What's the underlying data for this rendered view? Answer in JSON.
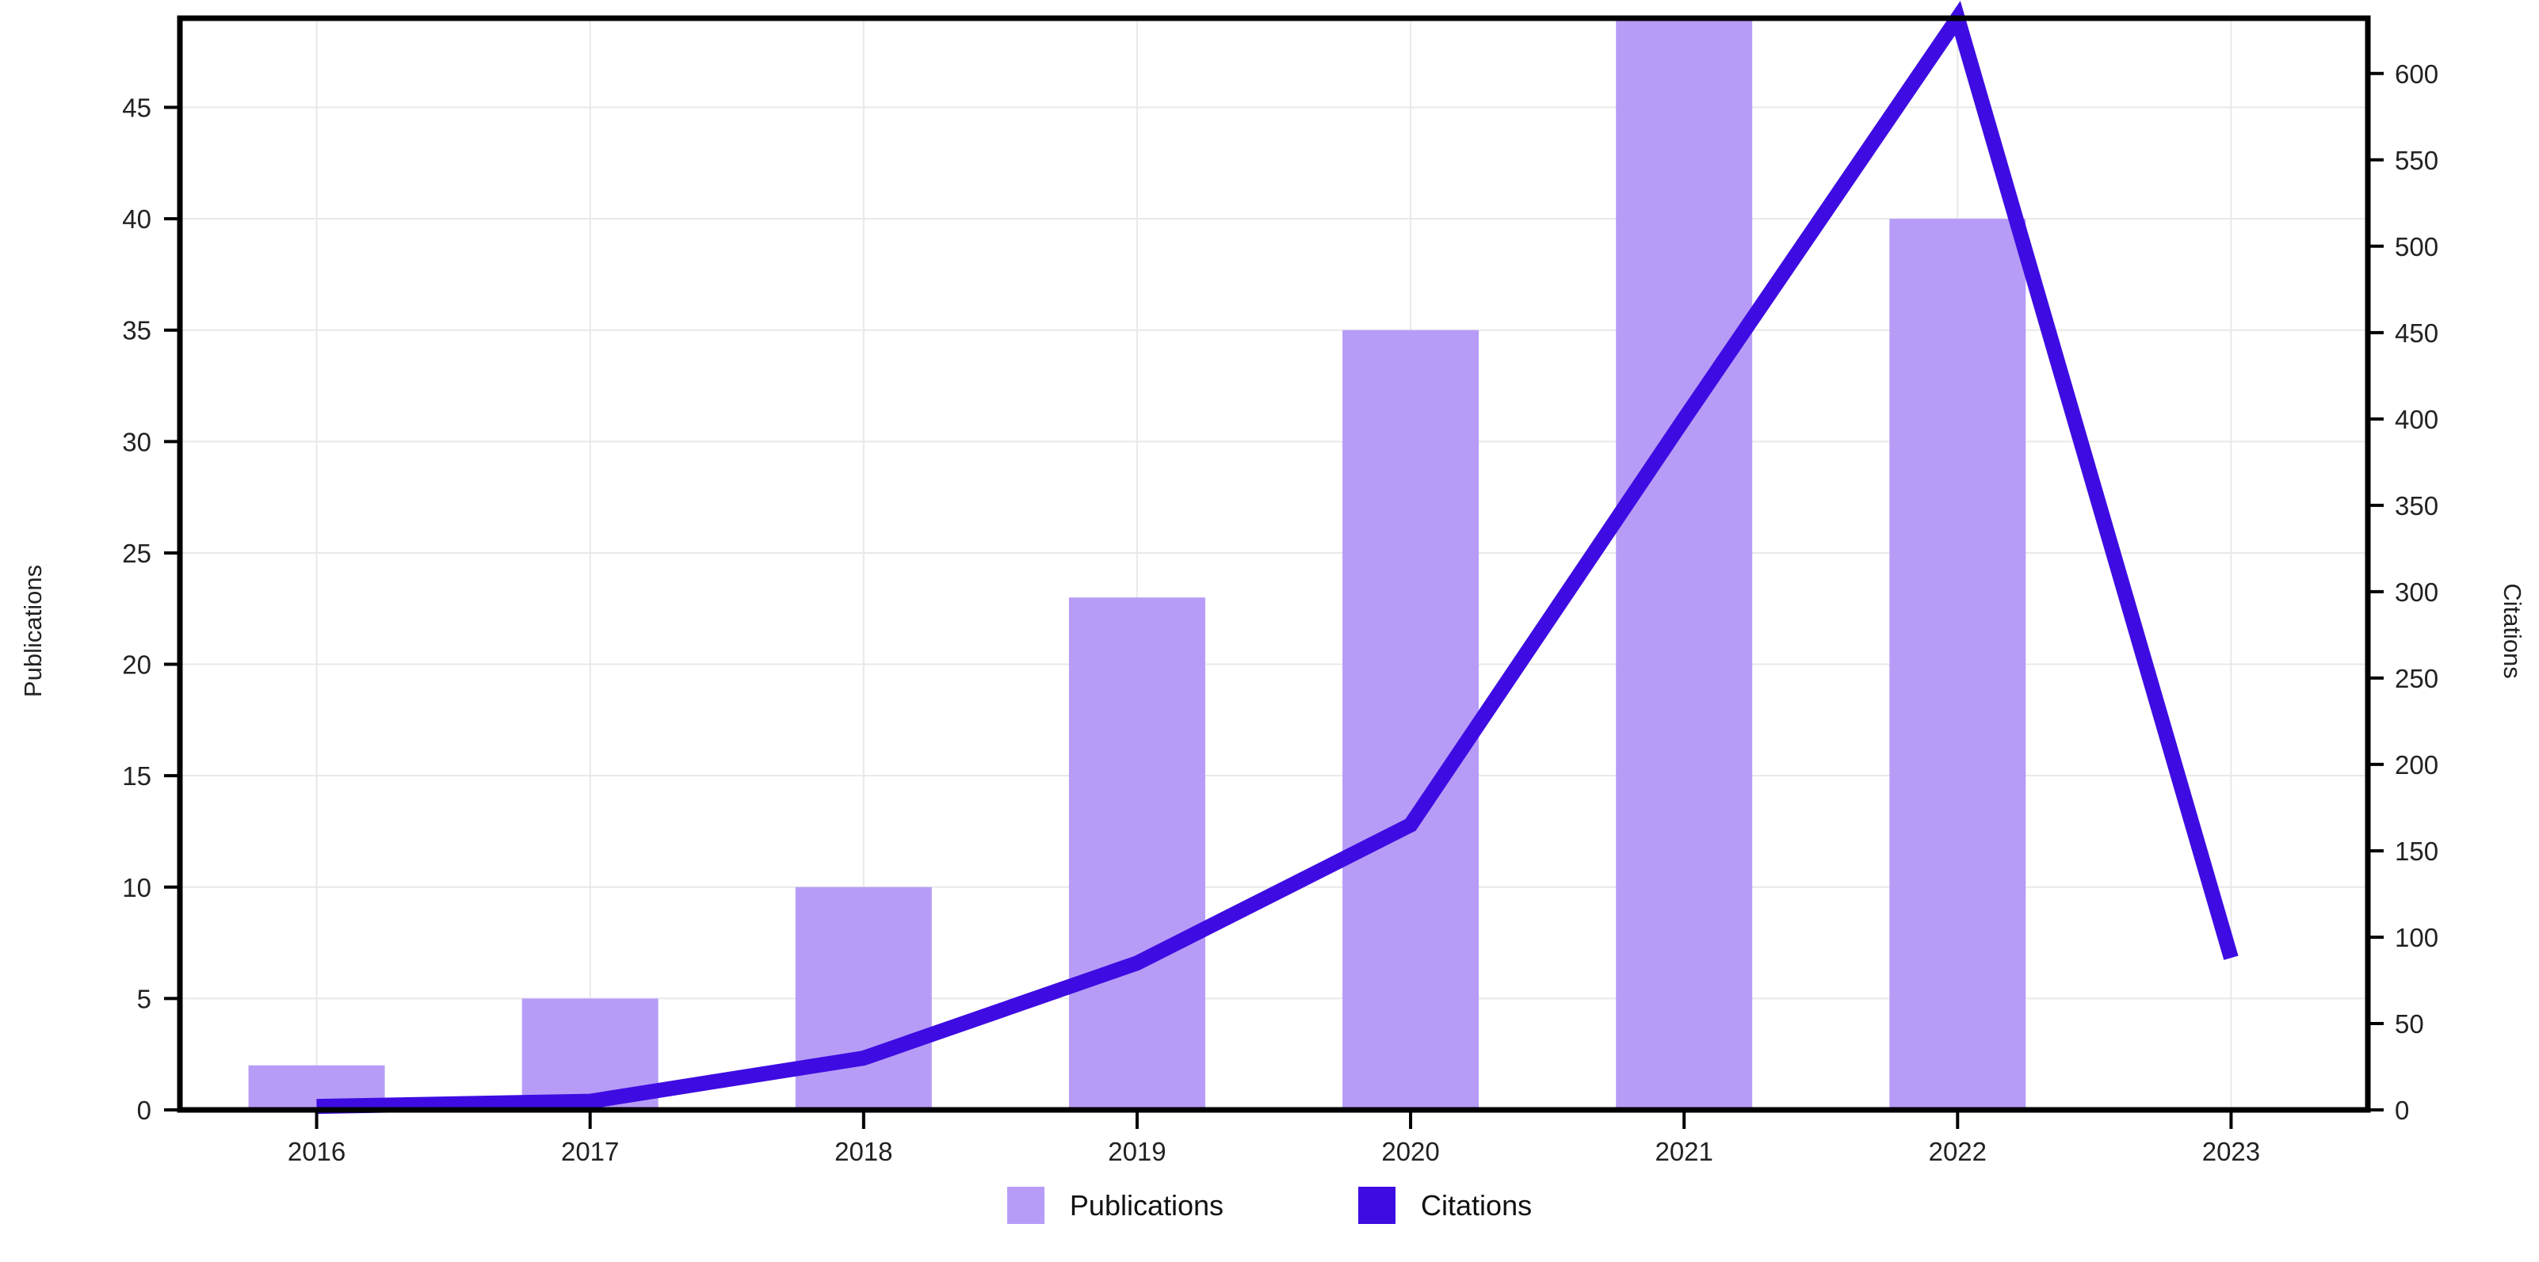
{
  "chart_data": {
    "type": "combo-bar-line",
    "title": "",
    "categories": [
      "2016",
      "2017",
      "2018",
      "2019",
      "2020",
      "2021",
      "2022",
      "2023"
    ],
    "series": [
      {
        "name": "Publications",
        "chart": "bar",
        "axis": "left",
        "color": "#b79cf7",
        "values": [
          2,
          5,
          10,
          23,
          35,
          49,
          40,
          0
        ]
      },
      {
        "name": "Citations",
        "chart": "line",
        "axis": "right",
        "color": "#3e0ce2",
        "values": [
          2,
          5,
          30,
          85,
          165,
          400,
          632,
          88
        ]
      }
    ],
    "left_axis": {
      "label": "Publications",
      "min": 0,
      "max": 49,
      "tick_step": 5,
      "ticks": [
        0,
        5,
        10,
        15,
        20,
        25,
        30,
        35,
        40,
        45
      ]
    },
    "right_axis": {
      "label": "Citations",
      "min": 0,
      "max": 632,
      "tick_step": 50,
      "ticks": [
        0,
        50,
        100,
        150,
        200,
        250,
        300,
        350,
        400,
        450,
        500,
        550,
        600
      ]
    },
    "x_axis": {
      "label": "",
      "ticks": [
        "2016",
        "2017",
        "2018",
        "2019",
        "2020",
        "2021",
        "2022",
        "2023"
      ]
    },
    "legend": {
      "position": "bottom",
      "entries": [
        "Publications",
        "Citations"
      ]
    },
    "grid": true,
    "colors": {
      "grid": "#e8e8e8",
      "axis": "#000000",
      "tick_text": "#222222",
      "background": "#ffffff"
    }
  }
}
